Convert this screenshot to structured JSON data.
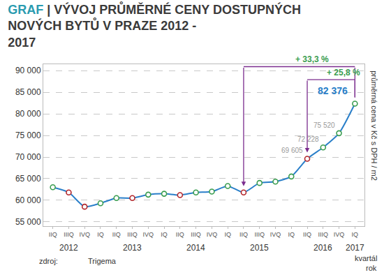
{
  "chart_data": {
    "type": "line",
    "title": "GRAF | VÝVOJ PRŮMĚRNÉ CENY DOSTUPNÝCH NOVÝCH BYTŮ V PRAZE 2012 - 2017",
    "categories": [
      "IIQ",
      "IIIQ",
      "IVQ",
      "IQ",
      "IIQ",
      "IIIQ",
      "IVQ",
      "IQ",
      "IIQ",
      "IIIQ",
      "IVQ",
      "IQ",
      "IIQ",
      "IIIQ",
      "IVQ",
      "IQ",
      "IIQ",
      "IIIQ",
      "IVQ",
      "IQ"
    ],
    "years": [
      null,
      "2012",
      null,
      null,
      null,
      "2013",
      null,
      null,
      null,
      "2014",
      null,
      null,
      null,
      "2015",
      null,
      null,
      null,
      "2016",
      null,
      "2017"
    ],
    "values": [
      63000,
      61800,
      58500,
      59300,
      60500,
      60500,
      61300,
      61500,
      61200,
      61800,
      62000,
      63300,
      61800,
      64000,
      64300,
      65500,
      69605,
      72228,
      75520,
      82376
    ],
    "value_labels": [
      null,
      null,
      null,
      null,
      null,
      null,
      null,
      null,
      null,
      null,
      null,
      null,
      null,
      null,
      null,
      null,
      "69 605",
      "72 228",
      "75 520",
      "82 376"
    ],
    "color": "#2a7fc9",
    "colors": [
      "#3a9d4f",
      "#b3262b",
      "#b3262b",
      "#3a9d4f",
      "#3a9d4f",
      "#b3262b",
      "#3a9d4f",
      "#3a9d4f",
      "#b3262b",
      "#3a9d4f",
      "#3a9d4f",
      "#3a9d4f",
      "#b3262b",
      "#3a9d4f",
      "#3a9d4f",
      "#3a9d4f",
      "#b3262b",
      "#3a9d4f",
      "#3a9d4f",
      "#3a9d4f"
    ],
    "marker": "circle",
    "ylim": [
      54000,
      91500
    ],
    "yticks": [
      {
        "value": 55000,
        "label": "55 000"
      },
      {
        "value": 60000,
        "label": "60 000"
      },
      {
        "value": 65000,
        "label": "65 000"
      },
      {
        "value": 70000,
        "label": "70 000"
      },
      {
        "value": 75000,
        "label": "75 000"
      },
      {
        "value": 80000,
        "label": "80 000"
      },
      {
        "value": 85000,
        "label": "85 000"
      },
      {
        "value": 90000,
        "label": "90 000"
      }
    ],
    "grid": true,
    "y_label": "průměrná cena v Kč s DPH / m2",
    "x_label": "kvartál",
    "x_group_label": "rok",
    "source_label": "zdroj:",
    "source": "Trigema",
    "annotations": [
      {
        "text": "+ 33,3 %",
        "x_from": 12,
        "x_to": 19
      },
      {
        "text": "+ 25,8 %",
        "x_from": 16,
        "x_to": 19
      }
    ]
  }
}
